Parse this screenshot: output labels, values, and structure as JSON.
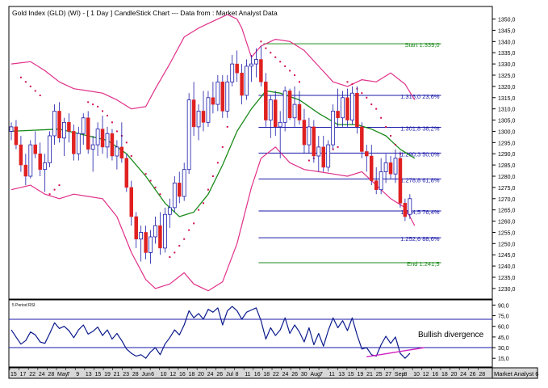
{
  "header": {
    "title": "Gold Index (GLD) (WI) -  [ 1 Day ] CandleStick Chart --- Data from : Market Analyst Data"
  },
  "rsi_panel": {
    "label": "5 Period RSI",
    "annotation": "Bullish divergence",
    "axis_labels": [
      "90,0",
      "75,0",
      "60,0",
      "45,0",
      "30,0",
      "15,0"
    ]
  },
  "footer": {
    "brand": "Market Analyst 6",
    "x_labels": [
      "15",
      "17",
      "22",
      "24",
      "28",
      "May",
      "7",
      "9",
      "13",
      "15",
      "19",
      "21",
      "23",
      "28",
      "Jun",
      "6",
      "10",
      "12",
      "16",
      "18",
      "20",
      "24",
      "26",
      "Jul",
      "8",
      "11",
      "16",
      "18",
      "22",
      "24",
      "26",
      "30",
      "Aug",
      "7",
      "11",
      "13",
      "15",
      "19",
      "21",
      "25",
      "27",
      "Sep",
      "8",
      "10",
      "12",
      "16",
      "18",
      "20",
      "24",
      "26",
      "28"
    ]
  },
  "colors": {
    "bollinger": "#e0308a",
    "moving_average": "#1a8a1a",
    "sar": "#d01050",
    "fib_line": "#1a1aaa",
    "start_end_line": "#1a8a1a",
    "bear_candle": "#e02020",
    "bull_candle": "#1a1aaa",
    "rsi_line": "#0a1a8c",
    "divergence": "#d020c0"
  },
  "chart_data": [
    {
      "type": "candlestick",
      "title": "Gold Index (GLD) (WI) -  [ 1 Day ] CandleStick Chart --- Data from : Market Analyst Data",
      "y_ticks": [
        "1350,0",
        "1345,0",
        "1340,0",
        "1335,0",
        "1330,0",
        "1325,0",
        "1320,0",
        "1315,0",
        "1310,0",
        "1305,0",
        "1300,0",
        "1295,0",
        "1290,0",
        "1285,0",
        "1280,0",
        "1275,0",
        "1270,0",
        "1265,0",
        "1260,0",
        "1255,0",
        "1250,0",
        "1245,0",
        "1240,0",
        "1235,0",
        "1230,0"
      ],
      "ylim": [
        1226,
        1352
      ],
      "levels": [
        {
          "label": "Start 1.339,0",
          "value": 1339.0,
          "kind": "start"
        },
        {
          "label": "1.316,0 23,6%",
          "value": 1316.0,
          "kind": "fib"
        },
        {
          "label": "1.301,8 38,2%",
          "value": 1301.8,
          "kind": "fib"
        },
        {
          "label": "1.290,3 50,0%",
          "value": 1290.3,
          "kind": "fib"
        },
        {
          "label": "1.278,8 61,8%",
          "value": 1278.8,
          "kind": "fib"
        },
        {
          "label": "1.264,5 76,4%",
          "value": 1264.5,
          "kind": "fib"
        },
        {
          "label": "1.252,6 88,6%",
          "value": 1252.6,
          "kind": "fib"
        },
        {
          "label": "End 1.241,5",
          "value": 1241.5,
          "kind": "end"
        }
      ],
      "candles": [
        [
          1300,
          1304,
          1296,
          1302
        ],
        [
          1302,
          1305,
          1292,
          1294
        ],
        [
          1294,
          1298,
          1282,
          1285
        ],
        [
          1285,
          1290,
          1276,
          1280
        ],
        [
          1280,
          1296,
          1279,
          1294
        ],
        [
          1294,
          1300,
          1288,
          1290
        ],
        [
          1290,
          1295,
          1280,
          1283
        ],
        [
          1283,
          1290,
          1273,
          1286
        ],
        [
          1286,
          1300,
          1284,
          1298
        ],
        [
          1298,
          1312,
          1294,
          1309
        ],
        [
          1309,
          1313,
          1295,
          1297
        ],
        [
          1297,
          1306,
          1289,
          1304
        ],
        [
          1304,
          1308,
          1295,
          1300
        ],
        [
          1300,
          1303,
          1287,
          1290
        ],
        [
          1290,
          1302,
          1287,
          1299
        ],
        [
          1299,
          1308,
          1294,
          1306
        ],
        [
          1306,
          1309,
          1290,
          1292
        ],
        [
          1292,
          1298,
          1282,
          1294
        ],
        [
          1294,
          1304,
          1289,
          1301
        ],
        [
          1301,
          1307,
          1290,
          1293
        ],
        [
          1293,
          1302,
          1288,
          1299
        ],
        [
          1299,
          1301,
          1287,
          1289
        ],
        [
          1289,
          1296,
          1283,
          1293
        ],
        [
          1293,
          1304,
          1286,
          1288
        ],
        [
          1288,
          1290,
          1273,
          1275
        ],
        [
          1275,
          1278,
          1258,
          1262
        ],
        [
          1262,
          1264,
          1248,
          1252
        ],
        [
          1252,
          1258,
          1242,
          1255
        ],
        [
          1255,
          1258,
          1243,
          1246
        ],
        [
          1246,
          1256,
          1241,
          1253
        ],
        [
          1253,
          1262,
          1250,
          1258
        ],
        [
          1258,
          1264,
          1245,
          1248
        ],
        [
          1248,
          1266,
          1246,
          1263
        ],
        [
          1263,
          1270,
          1257,
          1266
        ],
        [
          1266,
          1280,
          1264,
          1277
        ],
        [
          1277,
          1282,
          1268,
          1271
        ],
        [
          1271,
          1286,
          1269,
          1283
        ],
        [
          1283,
          1317,
          1281,
          1314
        ],
        [
          1314,
          1322,
          1298,
          1302
        ],
        [
          1302,
          1312,
          1296,
          1309
        ],
        [
          1309,
          1318,
          1300,
          1304
        ],
        [
          1304,
          1318,
          1302,
          1315
        ],
        [
          1315,
          1322,
          1308,
          1312
        ],
        [
          1312,
          1325,
          1309,
          1322
        ],
        [
          1322,
          1325,
          1306,
          1309
        ],
        [
          1309,
          1325,
          1306,
          1322
        ],
        [
          1322,
          1334,
          1320,
          1330
        ],
        [
          1330,
          1336,
          1322,
          1326
        ],
        [
          1326,
          1330,
          1312,
          1316
        ],
        [
          1316,
          1332,
          1314,
          1329
        ],
        [
          1329,
          1334,
          1322,
          1330
        ],
        [
          1330,
          1337,
          1324,
          1332
        ],
        [
          1332,
          1338,
          1320,
          1322
        ],
        [
          1322,
          1326,
          1302,
          1305
        ],
        [
          1305,
          1316,
          1297,
          1314
        ],
        [
          1314,
          1318,
          1298,
          1302
        ],
        [
          1302,
          1309,
          1288,
          1304
        ],
        [
          1304,
          1320,
          1300,
          1318
        ],
        [
          1318,
          1319,
          1305,
          1306
        ],
        [
          1306,
          1320,
          1302,
          1312
        ],
        [
          1312,
          1318,
          1303,
          1305
        ],
        [
          1305,
          1310,
          1290,
          1294
        ],
        [
          1294,
          1306,
          1290,
          1302
        ],
        [
          1302,
          1305,
          1286,
          1289
        ],
        [
          1289,
          1298,
          1282,
          1293
        ],
        [
          1293,
          1298,
          1282,
          1284
        ],
        [
          1284,
          1296,
          1282,
          1294
        ],
        [
          1294,
          1312,
          1292,
          1309
        ],
        [
          1309,
          1319,
          1302,
          1306
        ],
        [
          1306,
          1318,
          1302,
          1315
        ],
        [
          1315,
          1319,
          1302,
          1305
        ],
        [
          1305,
          1320,
          1303,
          1317
        ],
        [
          1317,
          1320,
          1299,
          1302
        ],
        [
          1302,
          1304,
          1288,
          1291
        ],
        [
          1291,
          1294,
          1282,
          1289
        ],
        [
          1289,
          1294,
          1276,
          1278
        ],
        [
          1278,
          1284,
          1272,
          1274
        ],
        [
          1274,
          1288,
          1272,
          1282
        ],
        [
          1282,
          1290,
          1277,
          1286
        ],
        [
          1286,
          1289,
          1279,
          1281
        ],
        [
          1281,
          1292,
          1277,
          1288
        ],
        [
          1288,
          1291,
          1266,
          1268
        ],
        [
          1268,
          1270,
          1260,
          1262
        ],
        [
          1263,
          1272,
          1261,
          1270
        ]
      ],
      "moving_average": [
        [
          0,
          1300
        ],
        [
          10,
          1301
        ],
        [
          20,
          1296
        ],
        [
          24,
          1290
        ],
        [
          28,
          1280
        ],
        [
          32,
          1268
        ],
        [
          35,
          1262
        ],
        [
          38,
          1264
        ],
        [
          41,
          1272
        ],
        [
          44,
          1285
        ],
        [
          47,
          1300
        ],
        [
          50,
          1310
        ],
        [
          53,
          1318
        ],
        [
          56,
          1317
        ],
        [
          60,
          1314
        ],
        [
          64,
          1308
        ],
        [
          68,
          1303
        ],
        [
          72,
          1303
        ],
        [
          75,
          1301
        ],
        [
          78,
          1298
        ],
        [
          81,
          1292
        ],
        [
          84,
          1288
        ]
      ],
      "bollinger_upper": [
        [
          0,
          1330
        ],
        [
          4,
          1331
        ],
        [
          7,
          1327
        ],
        [
          10,
          1322
        ],
        [
          13,
          1319
        ],
        [
          16,
          1318
        ],
        [
          19,
          1317
        ],
        [
          22,
          1314
        ],
        [
          25,
          1310
        ],
        [
          28,
          1311
        ],
        [
          30,
          1319
        ],
        [
          33,
          1330
        ],
        [
          36,
          1342
        ],
        [
          39,
          1346
        ],
        [
          42,
          1349
        ],
        [
          45,
          1352
        ],
        [
          47,
          1350
        ],
        [
          48,
          1346
        ],
        [
          50,
          1333
        ],
        [
          52,
          1338
        ],
        [
          55,
          1341
        ],
        [
          58,
          1340
        ],
        [
          61,
          1336
        ],
        [
          64,
          1329
        ],
        [
          67,
          1322
        ],
        [
          70,
          1320
        ],
        [
          73,
          1323
        ],
        [
          76,
          1322
        ],
        [
          79,
          1326
        ],
        [
          82,
          1321
        ],
        [
          84,
          1314
        ]
      ],
      "bollinger_lower": [
        [
          0,
          1274
        ],
        [
          4,
          1276
        ],
        [
          7,
          1272
        ],
        [
          10,
          1270
        ],
        [
          13,
          1272
        ],
        [
          16,
          1271
        ],
        [
          19,
          1270
        ],
        [
          22,
          1262
        ],
        [
          25,
          1246
        ],
        [
          28,
          1234
        ],
        [
          30,
          1230
        ],
        [
          33,
          1232
        ],
        [
          36,
          1237
        ],
        [
          38,
          1232
        ],
        [
          41,
          1229
        ],
        [
          44,
          1233
        ],
        [
          47,
          1250
        ],
        [
          50,
          1275
        ],
        [
          52,
          1288
        ],
        [
          55,
          1293
        ],
        [
          58,
          1286
        ],
        [
          61,
          1283
        ],
        [
          64,
          1282
        ],
        [
          67,
          1281
        ],
        [
          70,
          1280
        ],
        [
          73,
          1282
        ],
        [
          76,
          1276
        ],
        [
          79,
          1270
        ],
        [
          82,
          1266
        ],
        [
          84,
          1258
        ]
      ],
      "sar": [
        [
          2,
          1324
        ],
        [
          3,
          1322
        ],
        [
          4,
          1320
        ],
        [
          5,
          1318
        ],
        [
          6,
          1316
        ],
        [
          8,
          1272
        ],
        [
          9,
          1274
        ],
        [
          10,
          1276
        ],
        [
          16,
          1313
        ],
        [
          17,
          1312
        ],
        [
          18,
          1311
        ],
        [
          19,
          1309
        ],
        [
          20,
          1307
        ],
        [
          21,
          1304
        ],
        [
          22,
          1300
        ],
        [
          23,
          1298
        ],
        [
          24,
          1295
        ],
        [
          25,
          1289
        ],
        [
          28,
          1281
        ],
        [
          29,
          1278
        ],
        [
          30,
          1275
        ],
        [
          31,
          1272
        ],
        [
          33,
          1244
        ],
        [
          34,
          1246
        ],
        [
          35,
          1249
        ],
        [
          36,
          1252
        ],
        [
          37,
          1256
        ],
        [
          38,
          1259
        ],
        [
          39,
          1265
        ],
        [
          40,
          1268
        ],
        [
          41,
          1274
        ],
        [
          42,
          1280
        ],
        [
          43,
          1286
        ],
        [
          44,
          1293
        ],
        [
          45,
          1302
        ],
        [
          52,
          1340
        ],
        [
          53,
          1337
        ],
        [
          54,
          1335
        ],
        [
          55,
          1333
        ],
        [
          56,
          1331
        ],
        [
          57,
          1329
        ],
        [
          58,
          1327
        ],
        [
          59,
          1325
        ],
        [
          60,
          1322
        ],
        [
          62,
          1287
        ],
        [
          63,
          1288
        ],
        [
          64,
          1290
        ],
        [
          66,
          1291
        ],
        [
          67,
          1292
        ],
        [
          68,
          1293
        ],
        [
          70,
          1322
        ],
        [
          71,
          1321
        ],
        [
          72,
          1319
        ],
        [
          73,
          1317
        ],
        [
          74,
          1315
        ],
        [
          75,
          1312
        ],
        [
          76,
          1310
        ],
        [
          77,
          1306
        ],
        [
          78,
          1302
        ],
        [
          79,
          1298
        ],
        [
          80,
          1294
        ],
        [
          81,
          1290
        ]
      ]
    },
    {
      "type": "line",
      "title": "5 Period RSI",
      "ylim": [
        5,
        95
      ],
      "y_ticks": [
        "90,0",
        "75,0",
        "60,0",
        "45,0",
        "30,0",
        "15,0"
      ],
      "reference_lines": [
        70,
        30
      ],
      "series": [
        {
          "name": "5 Period RSI",
          "values": [
            55,
            45,
            35,
            40,
            52,
            48,
            38,
            36,
            50,
            65,
            57,
            60,
            54,
            44,
            55,
            62,
            49,
            53,
            59,
            47,
            55,
            42,
            50,
            40,
            28,
            22,
            18,
            20,
            15,
            24,
            30,
            20,
            35,
            44,
            55,
            48,
            62,
            82,
            72,
            78,
            70,
            84,
            80,
            86,
            62,
            82,
            88,
            82,
            70,
            80,
            83,
            86,
            68,
            42,
            58,
            47,
            55,
            72,
            50,
            62,
            52,
            38,
            58,
            34,
            50,
            32,
            54,
            72,
            58,
            68,
            54,
            72,
            48,
            28,
            30,
            20,
            18,
            34,
            46,
            36,
            45,
            22,
            15,
            22
          ]
        }
      ],
      "divergence_line": {
        "from": [
          74,
          17
        ],
        "to": [
          86,
          30
        ]
      },
      "annotations": [
        "Bullish divergence"
      ]
    }
  ]
}
